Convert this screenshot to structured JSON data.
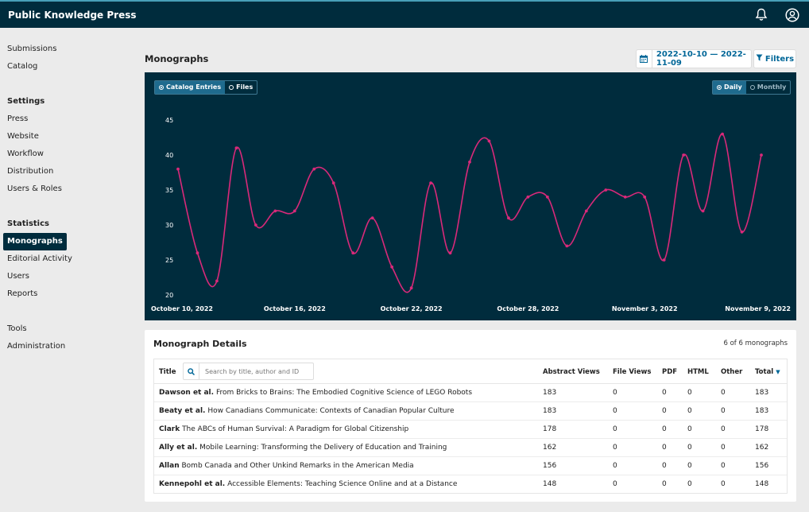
{
  "app": {
    "title": "Public Knowledge Press"
  },
  "header_icons": [
    "bell-icon",
    "user-icon"
  ],
  "sidebar": {
    "top": [
      {
        "label": "Submissions"
      },
      {
        "label": "Catalog"
      }
    ],
    "settings_heading": "Settings",
    "settings": [
      {
        "label": "Press"
      },
      {
        "label": "Website"
      },
      {
        "label": "Workflow"
      },
      {
        "label": "Distribution"
      },
      {
        "label": "Users & Roles"
      }
    ],
    "statistics_heading": "Statistics",
    "statistics": [
      {
        "label": "Monographs",
        "active": true
      },
      {
        "label": "Editorial Activity"
      },
      {
        "label": "Users"
      },
      {
        "label": "Reports"
      }
    ],
    "tools": [
      {
        "label": "Tools"
      },
      {
        "label": "Administration"
      }
    ]
  },
  "page": {
    "title": "Monographs",
    "date_range": "2022-10-10 — 2022-11-09",
    "filters_label": "Filters"
  },
  "chart_toggles": {
    "type": [
      {
        "label": "Catalog Entries",
        "selected": true
      },
      {
        "label": "Files",
        "selected": false
      }
    ],
    "interval": [
      {
        "label": "Daily",
        "selected": true
      },
      {
        "label": "Monthly",
        "selected": false
      }
    ]
  },
  "colors": {
    "chart_bg": "#002c3d",
    "line": "#d9297a",
    "accent": "#006798",
    "header_bg": "#002c3d"
  },
  "chart_data": {
    "type": "line",
    "series": [
      {
        "values": [
          38,
          26,
          22,
          41,
          30,
          32,
          32,
          38,
          36,
          26,
          31,
          24,
          21,
          36,
          26,
          39,
          42,
          31,
          34,
          34,
          27,
          32,
          35,
          34,
          34,
          25,
          40,
          32,
          43,
          29,
          40
        ]
      }
    ],
    "x": [
      "October 10, 2022",
      "October 11, 2022",
      "October 12, 2022",
      "October 13, 2022",
      "October 14, 2022",
      "October 15, 2022",
      "October 16, 2022",
      "October 17, 2022",
      "October 18, 2022",
      "October 19, 2022",
      "October 20, 2022",
      "October 21, 2022",
      "October 22, 2022",
      "October 23, 2022",
      "October 24, 2022",
      "October 25, 2022",
      "October 26, 2022",
      "October 27, 2022",
      "October 28, 2022",
      "October 29, 2022",
      "October 30, 2022",
      "October 31, 2022",
      "November 1, 2022",
      "November 2, 2022",
      "November 3, 2022",
      "November 4, 2022",
      "November 5, 2022",
      "November 6, 2022",
      "November 7, 2022",
      "November 8, 2022",
      "November 9, 2022"
    ],
    "x_tick_labels": [
      "October 10, 2022",
      "October 16, 2022",
      "October 22, 2022",
      "October 28, 2022",
      "November  3, 2022",
      "November  9, 2022"
    ],
    "y_ticks": [
      20,
      25,
      30,
      35,
      40,
      45
    ],
    "ylim": [
      20,
      45
    ],
    "grid": false,
    "legend": false
  },
  "details": {
    "title": "Monograph Details",
    "count": "6 of 6 monographs",
    "search_placeholder": "Search by title, author and ID",
    "columns": {
      "title": "Title",
      "abstract": "Abstract Views",
      "file": "File Views",
      "pdf": "PDF",
      "html": "HTML",
      "other": "Other",
      "total": "Total"
    },
    "rows": [
      {
        "author": "Dawson et al.",
        "title": "From Bricks to Brains: The Embodied Cognitive Science of LEGO Robots",
        "abstract": "183",
        "file": "0",
        "pdf": "0",
        "html": "0",
        "other": "0",
        "total": "183"
      },
      {
        "author": "Beaty et al.",
        "title": "How Canadians Communicate: Contexts of Canadian Popular Culture",
        "abstract": "183",
        "file": "0",
        "pdf": "0",
        "html": "0",
        "other": "0",
        "total": "183"
      },
      {
        "author": "Clark",
        "title": "The ABCs of Human Survival: A Paradigm for Global Citizenship",
        "abstract": "178",
        "file": "0",
        "pdf": "0",
        "html": "0",
        "other": "0",
        "total": "178"
      },
      {
        "author": "Ally et al.",
        "title": "Mobile Learning: Transforming the Delivery of Education and Training",
        "abstract": "162",
        "file": "0",
        "pdf": "0",
        "html": "0",
        "other": "0",
        "total": "162"
      },
      {
        "author": "Allan",
        "title": "Bomb Canada and Other Unkind Remarks in the American Media",
        "abstract": "156",
        "file": "0",
        "pdf": "0",
        "html": "0",
        "other": "0",
        "total": "156"
      },
      {
        "author": "Kennepohl et al.",
        "title": "Accessible Elements: Teaching Science Online and at a Distance",
        "abstract": "148",
        "file": "0",
        "pdf": "0",
        "html": "0",
        "other": "0",
        "total": "148"
      }
    ]
  }
}
